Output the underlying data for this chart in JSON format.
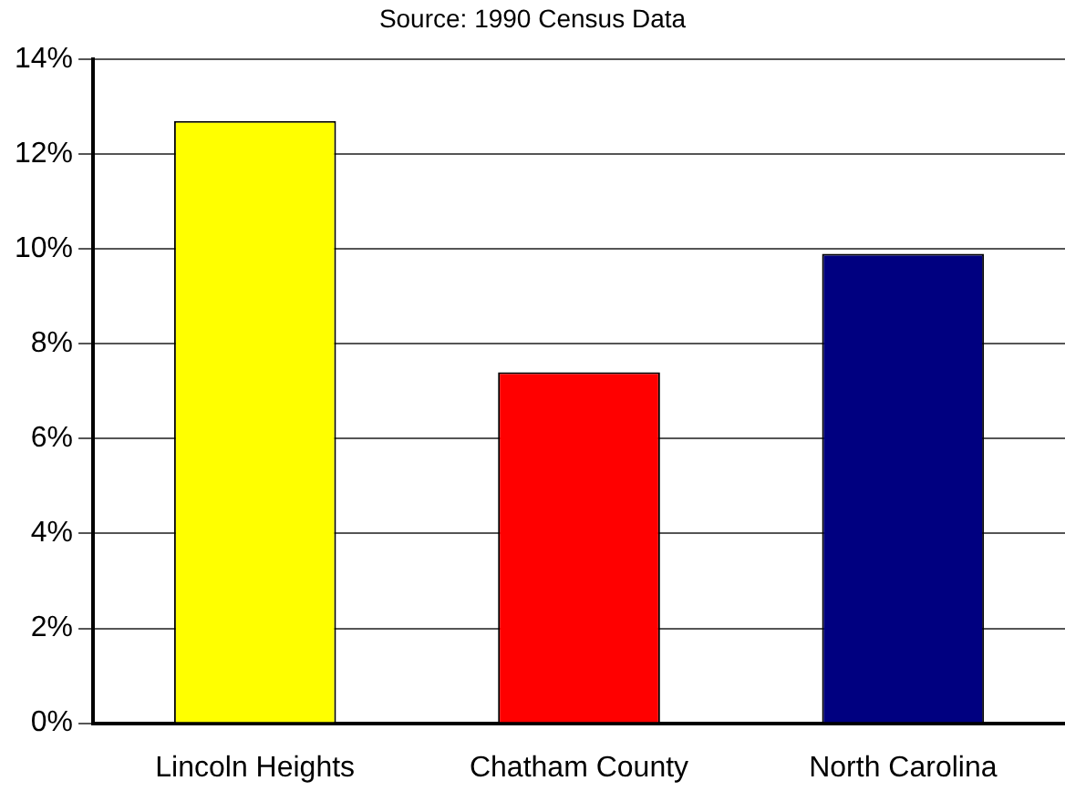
{
  "chart_data": {
    "type": "bar",
    "annotations": [
      "Source: 1990 Census Data"
    ],
    "categories": [
      "Lincoln Heights",
      "Chatham County",
      "North Carolina"
    ],
    "values": [
      12.7,
      7.4,
      9.9
    ],
    "colors": [
      "#ffff00",
      "#ff0000",
      "#000080"
    ],
    "ylim": [
      0,
      14
    ],
    "yticks": [
      {
        "value": 0,
        "label": "0%"
      },
      {
        "value": 2,
        "label": "2%"
      },
      {
        "value": 4,
        "label": "4%"
      },
      {
        "value": 6,
        "label": "6%"
      },
      {
        "value": 8,
        "label": "8%"
      },
      {
        "value": 10,
        "label": "10%"
      },
      {
        "value": 12,
        "label": "12%"
      },
      {
        "value": 14,
        "label": "14%"
      }
    ],
    "grid": "y"
  }
}
